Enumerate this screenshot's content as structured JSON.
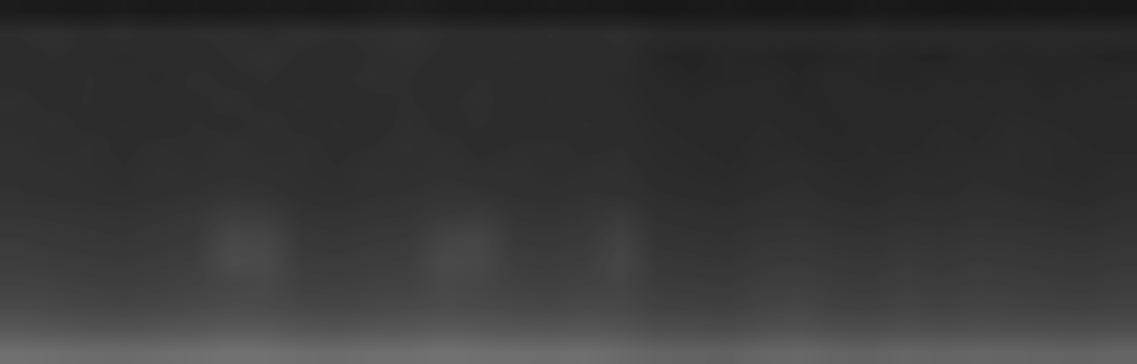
{
  "chart_data": {
    "type": "heatmap",
    "color": "gray",
    "tick_labels": false,
    "zlim": [
      0,
      255
    ],
    "cells": [
      [
        28,
        27,
        26,
        28,
        25,
        27,
        26,
        28,
        27,
        26,
        28,
        30,
        27,
        26,
        25,
        27,
        26,
        25,
        24,
        25,
        26,
        24,
        25,
        24,
        26,
        25,
        24,
        23,
        25,
        24,
        25,
        24
      ],
      [
        46,
        48,
        45,
        47,
        44,
        46,
        47,
        45,
        48,
        46,
        47,
        49,
        46,
        45,
        44,
        46,
        45,
        47,
        42,
        40,
        41,
        42,
        40,
        41,
        43,
        40,
        42,
        41,
        40,
        42,
        41,
        40
      ],
      [
        44,
        46,
        45,
        43,
        45,
        44,
        46,
        48,
        45,
        44,
        46,
        47,
        45,
        44,
        46,
        45,
        44,
        45,
        38,
        37,
        39,
        38,
        37,
        38,
        39,
        38,
        37,
        40,
        38,
        39,
        38,
        37
      ],
      [
        45,
        44,
        46,
        45,
        43,
        47,
        45,
        46,
        44,
        45,
        47,
        46,
        44,
        46,
        45,
        44,
        45,
        43,
        40,
        38,
        39,
        40,
        38,
        41,
        39,
        38,
        40,
        39,
        40,
        38,
        39,
        40
      ],
      [
        47,
        45,
        46,
        44,
        46,
        45,
        47,
        45,
        46,
        44,
        45,
        46,
        45,
        47,
        44,
        46,
        45,
        44,
        41,
        40,
        42,
        41,
        39,
        40,
        42,
        41,
        40,
        42,
        41,
        40,
        41,
        42
      ],
      [
        46,
        47,
        45,
        46,
        44,
        46,
        45,
        47,
        45,
        46,
        44,
        47,
        45,
        46,
        45,
        44,
        46,
        45,
        42,
        41,
        40,
        42,
        41,
        39,
        41,
        40,
        42,
        41,
        43,
        42,
        41,
        40
      ],
      [
        48,
        46,
        47,
        45,
        47,
        46,
        48,
        46,
        47,
        45,
        46,
        48,
        47,
        45,
        46,
        47,
        45,
        46,
        43,
        42,
        41,
        43,
        42,
        40,
        42,
        41,
        43,
        42,
        44,
        43,
        42,
        41
      ],
      [
        49,
        48,
        47,
        46,
        48,
        47,
        49,
        48,
        47,
        46,
        48,
        47,
        49,
        47,
        48,
        46,
        47,
        48,
        44,
        43,
        42,
        44,
        45,
        43,
        42,
        44,
        43,
        45,
        44,
        43,
        42,
        44
      ],
      [
        50,
        49,
        48,
        47,
        49,
        50,
        52,
        51,
        48,
        47,
        49,
        50,
        52,
        51,
        49,
        48,
        50,
        49,
        46,
        45,
        44,
        46,
        47,
        45,
        44,
        46,
        45,
        47,
        46,
        45,
        44,
        46
      ],
      [
        54,
        53,
        52,
        51,
        53,
        55,
        62,
        60,
        52,
        51,
        53,
        54,
        58,
        60,
        53,
        52,
        54,
        58,
        49,
        48,
        47,
        49,
        50,
        48,
        47,
        49,
        48,
        50,
        49,
        48,
        47,
        49
      ],
      [
        58,
        56,
        55,
        54,
        56,
        58,
        72,
        70,
        56,
        55,
        57,
        58,
        68,
        70,
        57,
        56,
        58,
        66,
        52,
        51,
        50,
        53,
        54,
        52,
        51,
        53,
        52,
        54,
        53,
        52,
        51,
        53
      ],
      [
        62,
        60,
        59,
        58,
        60,
        62,
        76,
        74,
        60,
        59,
        61,
        62,
        74,
        72,
        61,
        60,
        62,
        70,
        56,
        55,
        54,
        57,
        58,
        56,
        55,
        58,
        56,
        58,
        57,
        56,
        55,
        57
      ],
      [
        66,
        65,
        63,
        62,
        64,
        66,
        70,
        72,
        64,
        63,
        65,
        66,
        72,
        70,
        65,
        64,
        66,
        68,
        60,
        59,
        58,
        62,
        63,
        60,
        59,
        62,
        60,
        62,
        61,
        60,
        59,
        61
      ],
      [
        74,
        72,
        70,
        69,
        71,
        73,
        76,
        75,
        71,
        70,
        72,
        73,
        76,
        74,
        72,
        71,
        73,
        72,
        66,
        65,
        64,
        68,
        70,
        66,
        65,
        68,
        66,
        68,
        67,
        66,
        65,
        67
      ],
      [
        88,
        86,
        84,
        83,
        85,
        87,
        90,
        89,
        85,
        84,
        86,
        87,
        90,
        88,
        86,
        85,
        87,
        84,
        78,
        77,
        76,
        80,
        82,
        78,
        77,
        80,
        78,
        80,
        79,
        78,
        77,
        79
      ],
      [
        112,
        110,
        108,
        107,
        109,
        111,
        114,
        113,
        109,
        108,
        110,
        111,
        114,
        112,
        110,
        109,
        111,
        106,
        100,
        99,
        98,
        102,
        104,
        100,
        99,
        102,
        100,
        102,
        101,
        100,
        99,
        101
      ]
    ]
  }
}
